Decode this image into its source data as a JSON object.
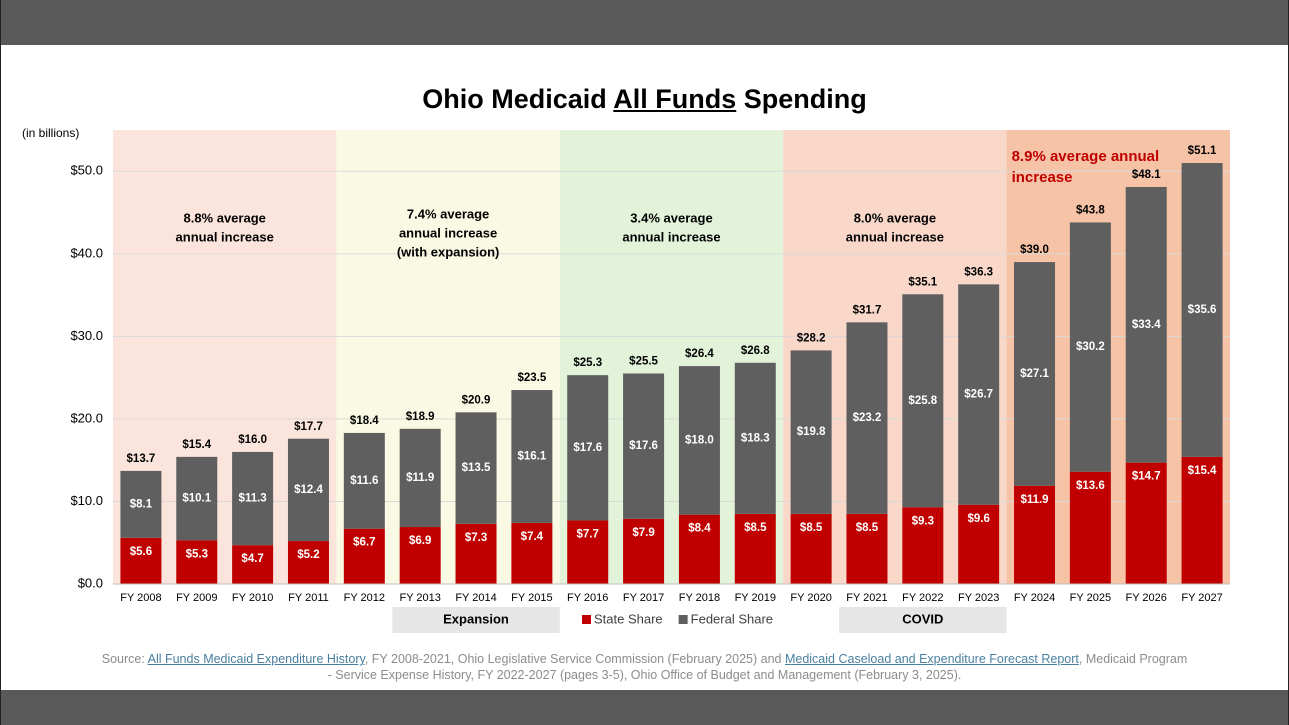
{
  "chart_data": {
    "type": "stacked_bar",
    "title": [
      "Ohio Medicaid ",
      "All Funds",
      " Spending"
    ],
    "y_label": "(in billions)",
    "categories": [
      "FY 2008",
      "FY 2009",
      "FY 2010",
      "FY 2011",
      "FY 2012",
      "FY 2013",
      "FY 2014",
      "FY 2015",
      "FY 2016",
      "FY 2017",
      "FY 2018",
      "FY 2019",
      "FY 2020",
      "FY 2021",
      "FY 2022",
      "FY 2023",
      "FY 2024",
      "FY 2025",
      "FY 2026",
      "FY 2027"
    ],
    "series": [
      {
        "name": "State Share",
        "color": "#c00000",
        "values": [
          5.6,
          5.3,
          4.7,
          5.2,
          6.7,
          6.9,
          7.3,
          7.4,
          7.7,
          7.9,
          8.4,
          8.5,
          8.5,
          8.5,
          9.3,
          9.6,
          11.9,
          13.6,
          14.7,
          15.4
        ],
        "value_labels": [
          "$5.6",
          "$5.3",
          "$4.7",
          "$5.2",
          "$6.7",
          "$6.9",
          "$7.3",
          "$7.4",
          "$7.7",
          "$7.9",
          "$8.4",
          "$8.5",
          "$8.5",
          "$8.5",
          "$9.3",
          "$9.6",
          "$11.9",
          "$13.6",
          "$14.7",
          "$15.4"
        ]
      },
      {
        "name": "Federal Share",
        "color": "#5f5f5f",
        "values": [
          8.1,
          10.1,
          11.3,
          12.4,
          11.6,
          11.9,
          13.5,
          16.1,
          17.6,
          17.6,
          18.0,
          18.3,
          19.8,
          23.2,
          25.8,
          26.7,
          27.1,
          30.2,
          33.4,
          35.6
        ],
        "value_labels": [
          "$8.1",
          "$10.1",
          "$11.3",
          "$12.4",
          "$11.6",
          "$11.9",
          "$13.5",
          "$16.1",
          "$17.6",
          "$17.6",
          "$18.0",
          "$18.3",
          "$19.8",
          "$23.2",
          "$25.8",
          "$26.7",
          "$27.1",
          "$30.2",
          "$33.4",
          "$35.6"
        ]
      }
    ],
    "total_labels": [
      "$13.7",
      "$15.4",
      "$16.0",
      "$17.7",
      "$18.4",
      "$18.9",
      "$20.9",
      "$23.5",
      "$25.3",
      "$25.5",
      "$26.4",
      "$26.8",
      "$28.2",
      "$31.7",
      "$35.1",
      "$36.3",
      "$39.0",
      "$43.8",
      "$48.1",
      "$51.1"
    ],
    "ylim": [
      0,
      55
    ],
    "yticks": [
      {
        "value": 0,
        "label": "$0.0"
      },
      {
        "value": 10,
        "label": "$10.0"
      },
      {
        "value": 20,
        "label": "$20.0"
      },
      {
        "value": 30,
        "label": "$30.0"
      },
      {
        "value": 40,
        "label": "$40.0"
      },
      {
        "value": 50,
        "label": "$50.0"
      }
    ],
    "grid": true,
    "periods": [
      {
        "text": [
          "8.8% average",
          "annual increase"
        ],
        "color": "#fbe4dc"
      },
      {
        "text": [
          "7.4% average",
          "annual increase",
          "(with expansion)"
        ],
        "color": "#fafae4"
      },
      {
        "text": [
          "3.4% average",
          "annual increase"
        ],
        "color": "#e2f3da"
      },
      {
        "text": [
          "8.0% average",
          "annual increase"
        ],
        "color": "#f9d8ca"
      },
      {
        "text": [
          "8.9% average annual",
          "increase"
        ],
        "color": "#f7c3a6",
        "text_color": "#c00000"
      }
    ],
    "spans": [
      "Expansion",
      "COVID"
    ]
  },
  "source": [
    {
      "text": "Source: "
    },
    {
      "text": "All Funds Medicaid Expenditure History",
      "link": true
    },
    {
      "text": ", FY 2008-2021, Ohio Legislative Service Commission (February 2025) and "
    },
    {
      "text": "Medicaid Caseload and Expenditure Forecast Report",
      "link": true
    },
    {
      "text": ", Medicaid Program - Service Expense History, FY 2022-2027 (pages 3-5), Ohio Office of Budget and Management (February 3, 2025)."
    }
  ]
}
